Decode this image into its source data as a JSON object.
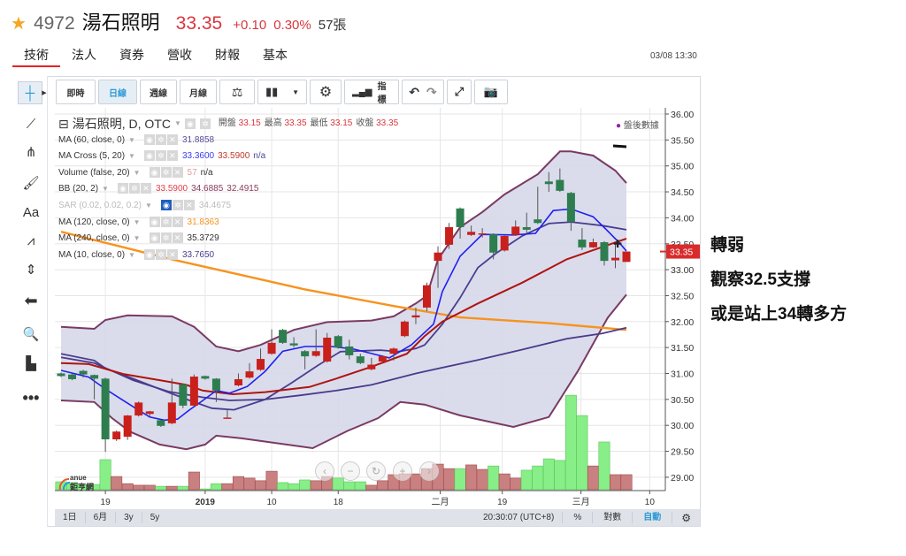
{
  "header": {
    "star_icon": "star-icon",
    "code": "4972",
    "name": "湯石照明",
    "price": "33.35",
    "change": "+0.10",
    "change_pct": "0.30%",
    "volume": "57張"
  },
  "tabs": [
    {
      "label": "技術",
      "active": true
    },
    {
      "label": "法人"
    },
    {
      "label": "資券"
    },
    {
      "label": "營收"
    },
    {
      "label": "財報"
    },
    {
      "label": "基本"
    }
  ],
  "timestamp": "03/08 13:30",
  "toolbar": {
    "realtime": "即時",
    "daily": "日線",
    "weekly": "週線",
    "monthly": "月線",
    "indicators": "指標"
  },
  "legend": {
    "title": "湯石照明, D, OTC",
    "ohlc": [
      {
        "k": "開盤",
        "v": "33.15"
      },
      {
        "k": "最高",
        "v": "33.35"
      },
      {
        "k": "最低",
        "v": "33.15"
      },
      {
        "k": "收盤",
        "v": "33.35"
      }
    ],
    "studies": [
      {
        "name": "MA (60, close, 0)",
        "values": [
          {
            "v": "31.8858",
            "c": "#5a4a9a"
          }
        ]
      },
      {
        "name": "MA Cross (5, 20)",
        "values": [
          {
            "v": "33.3600",
            "c": "#3b3bf0"
          },
          {
            "v": "33.5900",
            "c": "#c0392b"
          },
          {
            "v": "n/a",
            "c": "#4a4aa0"
          }
        ]
      },
      {
        "name": "Volume (false, 20)",
        "values": [
          {
            "v": "57",
            "c": "#e39a9a"
          },
          {
            "v": "n/a",
            "c": "#333"
          }
        ]
      },
      {
        "name": "BB (20, 2)",
        "values": [
          {
            "v": "33.5900",
            "c": "#e0404a"
          },
          {
            "v": "34.6885",
            "c": "#8a3a5a"
          },
          {
            "v": "32.4915",
            "c": "#8a3a5a"
          }
        ]
      },
      {
        "name": "SAR (0.02, 0.02, 0.2)",
        "values": [
          {
            "v": "34.4675",
            "c": "#bbb"
          }
        ],
        "hidden": true
      },
      {
        "name": "MA (120, close, 0)",
        "values": [
          {
            "v": "31.8363",
            "c": "#f7931e"
          }
        ]
      },
      {
        "name": "MA (240, close, 0)",
        "values": [
          {
            "v": "35.3729",
            "c": "#333"
          }
        ]
      },
      {
        "name": "MA (10, close, 0)",
        "values": [
          {
            "v": "33.7650",
            "c": "#4a3d8f"
          }
        ]
      }
    ],
    "after_hours": "盤後數據"
  },
  "bottombar": {
    "ranges": [
      "1日",
      "6月",
      "3y",
      "5y"
    ],
    "clock": "20:30:07 (UTC+8)",
    "pct": "%",
    "log": "對數",
    "auto": "自動"
  },
  "logo": {
    "text": "anue",
    "sub": "鉅亨網"
  },
  "notes": [
    "轉弱",
    "觀察32.5支撐",
    "或是站上34轉多方"
  ],
  "colors": {
    "up": "#c9201c",
    "down": "#2e7d4f",
    "vol_up": "#c98080",
    "vol_down": "#88ee88",
    "accent": "#2a9ad6",
    "bb_fill": "#d6d8ea",
    "bb_line": "#7a3a62"
  },
  "chart_data": {
    "type": "candlestick",
    "ylim": [
      29,
      36
    ],
    "yticks": [
      "36.00",
      "35.50",
      "35.00",
      "34.50",
      "34.00",
      "33.50",
      "33.00",
      "32.50",
      "32.00",
      "31.50",
      "31.00",
      "30.50",
      "30.00",
      "29.50",
      "29.00"
    ],
    "last_price": "33.35",
    "xticks": [
      {
        "label": "19",
        "i": 4
      },
      {
        "label": "2019",
        "i": 13,
        "bold": true
      },
      {
        "label": "10",
        "i": 19
      },
      {
        "label": "18",
        "i": 25
      },
      {
        "label": "二月",
        "i": 34.2
      },
      {
        "label": "19",
        "i": 39.8
      },
      {
        "label": "三月",
        "i": 46.9
      },
      {
        "label": "10",
        "i": 53.1
      }
    ],
    "ohlc": [
      [
        31.0,
        31.02,
        30.93,
        30.95
      ],
      [
        30.98,
        31.0,
        30.87,
        30.89
      ],
      [
        31.05,
        31.07,
        30.92,
        30.98
      ],
      [
        30.97,
        30.98,
        30.5,
        30.9
      ],
      [
        30.9,
        30.92,
        29.49,
        29.73
      ],
      [
        29.73,
        29.9,
        29.7,
        29.88
      ],
      [
        29.78,
        30.2,
        29.72,
        30.19
      ],
      [
        30.19,
        30.46,
        30.17,
        30.44
      ],
      [
        30.22,
        30.28,
        30.17,
        30.27
      ],
      [
        30.1,
        30.11,
        29.97,
        29.99
      ],
      [
        30.04,
        30.9,
        30.02,
        30.44
      ],
      [
        30.79,
        30.8,
        30.33,
        30.38
      ],
      [
        30.38,
        30.98,
        30.36,
        30.94
      ],
      [
        30.95,
        30.96,
        30.88,
        30.9
      ],
      [
        30.9,
        30.91,
        30.45,
        30.67
      ],
      [
        30.14,
        30.3,
        30.13,
        30.15
      ],
      [
        30.77,
        31.0,
        30.75,
        30.89
      ],
      [
        30.92,
        31.2,
        30.9,
        31.04
      ],
      [
        31.07,
        31.48,
        31.05,
        31.28
      ],
      [
        31.38,
        31.85,
        31.36,
        31.59
      ],
      [
        31.84,
        31.86,
        31.57,
        31.59
      ],
      [
        31.58,
        31.7,
        31.5,
        31.54
      ],
      [
        31.43,
        31.45,
        31.08,
        31.33
      ],
      [
        31.34,
        31.85,
        31.32,
        31.43
      ],
      [
        31.23,
        31.78,
        31.21,
        31.69
      ],
      [
        31.72,
        31.74,
        31.48,
        31.5
      ],
      [
        31.52,
        31.65,
        31.27,
        31.35
      ],
      [
        31.33,
        31.38,
        31.18,
        31.2
      ],
      [
        31.08,
        31.3,
        31.06,
        31.17
      ],
      [
        31.23,
        31.35,
        31.21,
        31.33
      ],
      [
        31.38,
        31.5,
        31.25,
        31.48
      ],
      [
        31.72,
        32.02,
        31.7,
        32.0
      ],
      [
        32.08,
        32.27,
        31.95,
        32.12
      ],
      [
        32.27,
        32.75,
        32.2,
        32.7
      ],
      [
        33.17,
        33.45,
        32.65,
        33.33
      ],
      [
        33.48,
        33.9,
        33.4,
        33.82
      ],
      [
        34.18,
        34.2,
        33.6,
        33.82
      ],
      [
        33.67,
        33.85,
        33.65,
        33.73
      ],
      [
        33.68,
        33.8,
        33.62,
        33.7
      ],
      [
        33.68,
        33.7,
        33.2,
        33.33
      ],
      [
        33.37,
        33.67,
        33.35,
        33.65
      ],
      [
        33.67,
        33.95,
        33.65,
        33.83
      ],
      [
        33.82,
        34.1,
        33.7,
        33.77
      ],
      [
        33.97,
        34.6,
        33.88,
        33.9
      ],
      [
        34.7,
        34.88,
        34.5,
        34.65
      ],
      [
        34.73,
        34.95,
        34.5,
        34.52
      ],
      [
        34.48,
        34.5,
        33.75,
        33.92
      ],
      [
        33.58,
        33.8,
        33.38,
        33.43
      ],
      [
        33.43,
        33.6,
        33.42,
        33.53
      ],
      [
        33.53,
        33.55,
        33.08,
        33.17
      ],
      [
        33.18,
        33.5,
        33.03,
        33.23
      ],
      [
        33.15,
        33.35,
        33.15,
        33.35
      ]
    ],
    "volume": [
      30,
      27,
      20,
      20,
      114,
      50,
      23,
      17,
      17,
      13,
      13,
      13,
      67,
      3,
      23,
      23,
      50,
      44,
      34,
      70,
      27,
      23,
      37,
      34,
      50,
      44,
      30,
      30,
      17,
      34,
      57,
      60,
      60,
      80,
      97,
      80,
      80,
      94,
      77,
      90,
      60,
      44,
      74,
      90,
      117,
      111,
      358,
      281,
      90,
      181,
      57,
      57
    ],
    "lines": [
      {
        "name": "MA120",
        "color": "#f7931e",
        "width": 2.4,
        "points": [
          [
            0,
            33.73
          ],
          [
            10,
            33.2
          ],
          [
            22,
            32.62
          ],
          [
            30,
            32.3
          ],
          [
            36,
            32.08
          ],
          [
            44,
            31.97
          ],
          [
            51,
            31.84
          ]
        ]
      },
      {
        "name": "MA60",
        "color": "#4a3a8a",
        "width": 1.8,
        "points": [
          [
            0,
            31.31
          ],
          [
            3,
            31.2
          ],
          [
            6.5,
            30.87
          ],
          [
            9.7,
            30.65
          ],
          [
            12.8,
            30.54
          ],
          [
            15.2,
            30.48
          ],
          [
            18.4,
            30.5
          ],
          [
            21.6,
            30.58
          ],
          [
            24.8,
            30.67
          ],
          [
            28,
            30.78
          ],
          [
            32,
            31.0
          ],
          [
            32.8,
            31.04
          ],
          [
            37.6,
            31.26
          ],
          [
            41.6,
            31.46
          ],
          [
            45.6,
            31.67
          ],
          [
            48.8,
            31.77
          ],
          [
            51,
            31.88
          ]
        ]
      },
      {
        "name": "MA10",
        "color": "#4a3d8f",
        "width": 1.8,
        "points": [
          [
            0,
            31.38
          ],
          [
            3,
            31.25
          ],
          [
            4,
            31.1
          ],
          [
            6.5,
            30.9
          ],
          [
            8.9,
            30.7
          ],
          [
            11.6,
            30.48
          ],
          [
            13.6,
            30.33
          ],
          [
            15.6,
            30.3
          ],
          [
            18.4,
            30.5
          ],
          [
            20.8,
            30.82
          ],
          [
            23.2,
            31.16
          ],
          [
            25.2,
            31.42
          ],
          [
            28.8,
            31.45
          ],
          [
            30.4,
            31.42
          ],
          [
            32,
            31.48
          ],
          [
            32.8,
            31.55
          ],
          [
            34.4,
            31.95
          ],
          [
            36,
            32.46
          ],
          [
            37.6,
            33.04
          ],
          [
            39.2,
            33.31
          ],
          [
            41.6,
            33.65
          ],
          [
            44,
            33.89
          ],
          [
            46,
            33.92
          ],
          [
            48.8,
            33.85
          ],
          [
            51,
            33.77
          ]
        ]
      },
      {
        "name": "MA20",
        "color": "#b0140f",
        "width": 2,
        "points": [
          [
            0,
            31.2
          ],
          [
            2.5,
            31.18
          ],
          [
            5.6,
            30.99
          ],
          [
            8.9,
            30.87
          ],
          [
            11.3,
            30.78
          ],
          [
            12.8,
            30.67
          ],
          [
            15.5,
            30.6
          ],
          [
            18.4,
            30.64
          ],
          [
            22.4,
            30.74
          ],
          [
            24.8,
            30.9
          ],
          [
            28,
            31.13
          ],
          [
            31.2,
            31.38
          ],
          [
            32.8,
            31.72
          ],
          [
            34.4,
            32.0
          ],
          [
            37.6,
            32.35
          ],
          [
            41.6,
            32.75
          ],
          [
            45.6,
            33.2
          ],
          [
            51,
            33.6
          ]
        ]
      },
      {
        "name": "MA5",
        "color": "#1f1ff0",
        "width": 1.6,
        "points": [
          [
            0,
            31.06
          ],
          [
            2.5,
            30.93
          ],
          [
            4,
            30.7
          ],
          [
            6.5,
            30.36
          ],
          [
            8,
            30.16
          ],
          [
            9.3,
            30.1
          ],
          [
            10.5,
            30.12
          ],
          [
            11.6,
            30.3
          ],
          [
            12.8,
            30.48
          ],
          [
            14,
            30.67
          ],
          [
            15.2,
            30.62
          ],
          [
            16.8,
            30.75
          ],
          [
            18.4,
            31.04
          ],
          [
            20,
            31.43
          ],
          [
            22,
            31.52
          ],
          [
            24.4,
            31.52
          ],
          [
            26.4,
            31.47
          ],
          [
            29.6,
            31.3
          ],
          [
            31.6,
            31.55
          ],
          [
            33.6,
            31.95
          ],
          [
            34.4,
            32.58
          ],
          [
            36,
            33.26
          ],
          [
            38,
            33.68
          ],
          [
            40.8,
            33.67
          ],
          [
            42.8,
            33.7
          ],
          [
            44.4,
            34.14
          ],
          [
            46,
            34.17
          ],
          [
            48,
            34.02
          ],
          [
            49.2,
            33.77
          ],
          [
            50.4,
            33.51
          ],
          [
            51,
            33.36
          ]
        ]
      }
    ],
    "bb_upper": [
      [
        0,
        31.9
      ],
      [
        3,
        31.86
      ],
      [
        4,
        32.03
      ],
      [
        6,
        32.12
      ],
      [
        10,
        32.1
      ],
      [
        12,
        31.9
      ],
      [
        14,
        31.52
      ],
      [
        16,
        31.43
      ],
      [
        18,
        31.55
      ],
      [
        21,
        31.84
      ],
      [
        24,
        31.99
      ],
      [
        28,
        32.02
      ],
      [
        30,
        32.1
      ],
      [
        32,
        32.35
      ],
      [
        33,
        32.5
      ],
      [
        34,
        33.2
      ],
      [
        36,
        33.82
      ],
      [
        38,
        34.11
      ],
      [
        40,
        34.45
      ],
      [
        43,
        34.84
      ],
      [
        45,
        35.28
      ],
      [
        46,
        35.28
      ],
      [
        48,
        35.2
      ],
      [
        50,
        34.91
      ],
      [
        51,
        34.67
      ]
    ],
    "bb_lower": [
      [
        0,
        30.48
      ],
      [
        3,
        30.45
      ],
      [
        4.6,
        30.14
      ],
      [
        6.2,
        29.88
      ],
      [
        8.9,
        29.63
      ],
      [
        11.3,
        29.54
      ],
      [
        13,
        29.63
      ],
      [
        14,
        29.8
      ],
      [
        16.3,
        29.75
      ],
      [
        22.7,
        29.56
      ],
      [
        25.9,
        29.9
      ],
      [
        28.6,
        30.14
      ],
      [
        30.6,
        30.45
      ],
      [
        32.8,
        30.4
      ],
      [
        36,
        30.19
      ],
      [
        40.8,
        29.97
      ],
      [
        44,
        30.16
      ],
      [
        46.6,
        31.04
      ],
      [
        49.3,
        32.07
      ],
      [
        51,
        32.52
      ]
    ]
  }
}
